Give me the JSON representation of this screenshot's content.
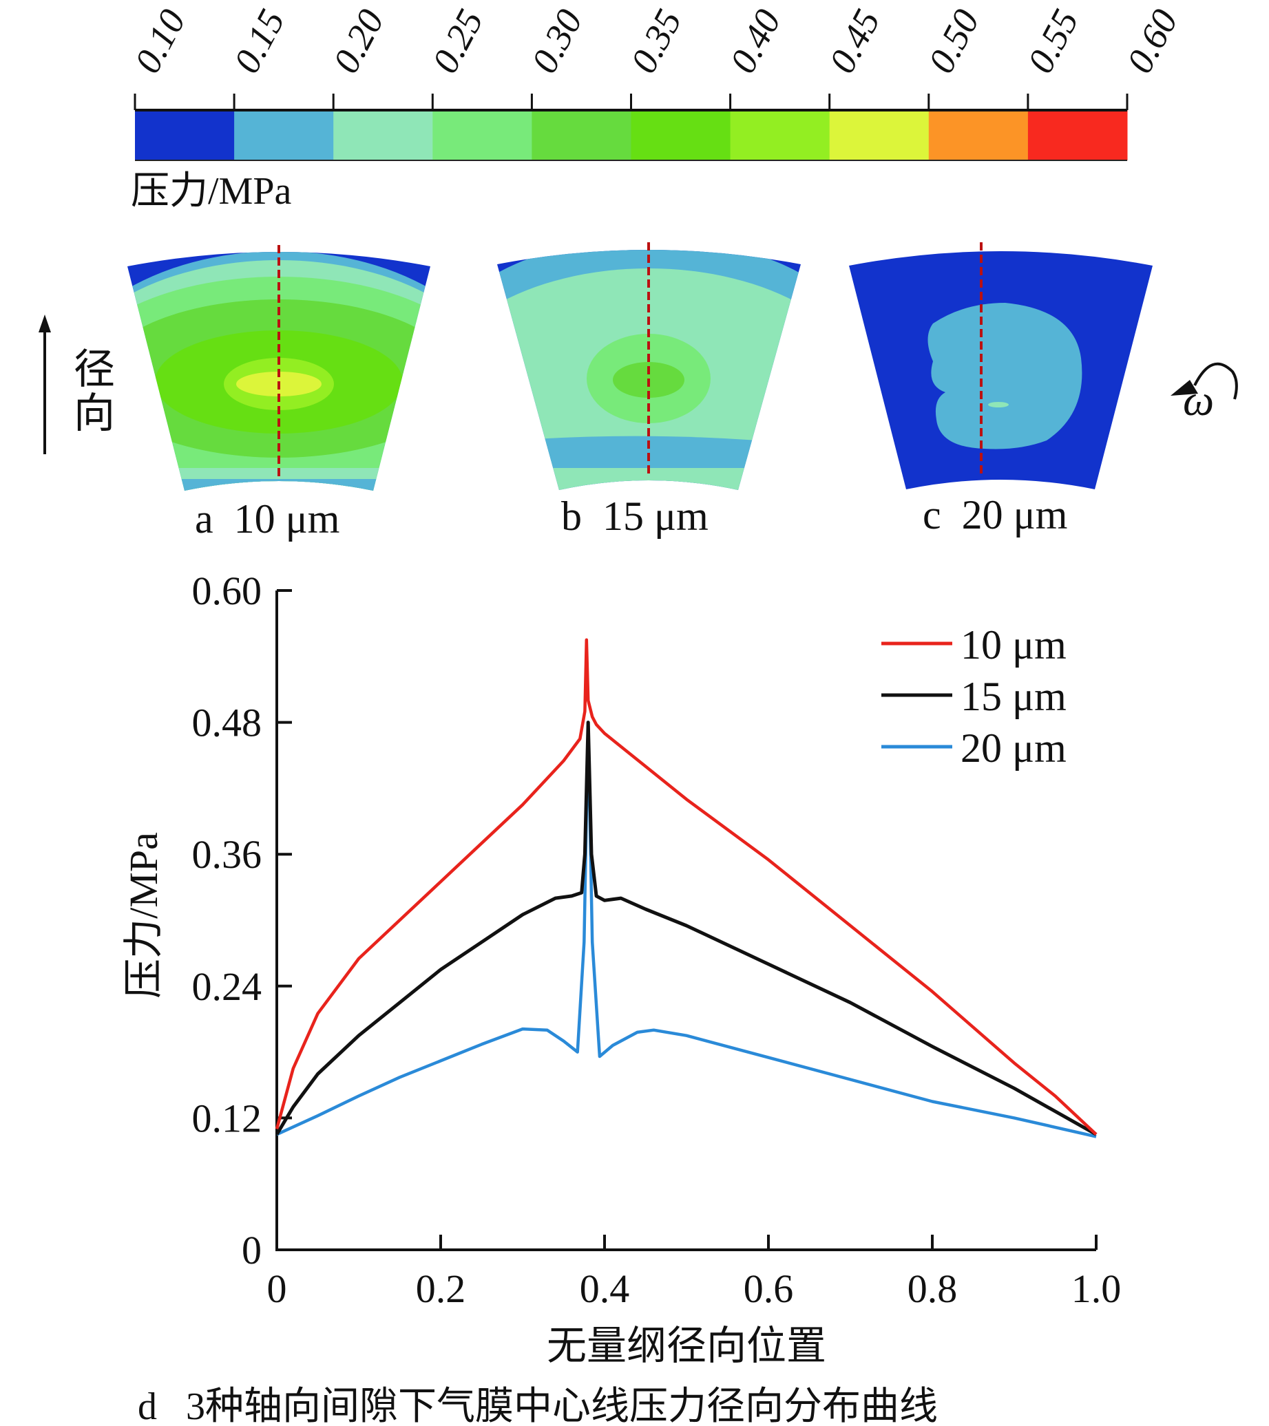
{
  "colorbar": {
    "ticks": [
      "0.10",
      "0.15",
      "0.20",
      "0.25",
      "0.30",
      "0.35",
      "0.40",
      "0.45",
      "0.50",
      "0.55",
      "0.60"
    ],
    "colors": [
      "#1233cc",
      "#55b4d6",
      "#8fe6b7",
      "#78ea7a",
      "#66db3e",
      "#66df13",
      "#93ee22",
      "#dcf53a",
      "#fc9426",
      "#f8291f"
    ],
    "label": "压力/MPa"
  },
  "contours": {
    "direction_label": "径向",
    "rotation_label": "ω",
    "panels": [
      {
        "id": "a",
        "caption": "a  10 μm"
      },
      {
        "id": "b",
        "caption": "b  15 μm"
      },
      {
        "id": "c",
        "caption": "c  20 μm"
      }
    ]
  },
  "chart_data": {
    "type": "line",
    "title": "d   3种轴向间隙下气膜中心线压力径向分布曲线",
    "xlabel": "无量纲径向位置",
    "ylabel": "压力/MPa",
    "xlim": [
      0,
      1.0
    ],
    "ylim": [
      0,
      0.6
    ],
    "xticks": [
      0,
      0.2,
      0.4,
      0.6,
      0.8,
      1.0
    ],
    "xtick_labels": [
      "0",
      "0.2",
      "0.4",
      "0.6",
      "0.8",
      "1.0"
    ],
    "yticks": [
      0,
      0.12,
      0.24,
      0.36,
      0.48,
      0.6
    ],
    "ytick_labels": [
      "0",
      "0.12",
      "0.24",
      "0.36",
      "0.48",
      "0.60"
    ],
    "grid": false,
    "legend_position": "top-right",
    "series": [
      {
        "name": "10 μm",
        "color": "#e8231c",
        "x": [
          0,
          0.02,
          0.05,
          0.1,
          0.15,
          0.2,
          0.25,
          0.3,
          0.35,
          0.37,
          0.376,
          0.378,
          0.38,
          0.385,
          0.39,
          0.4,
          0.45,
          0.5,
          0.6,
          0.7,
          0.8,
          0.9,
          0.95,
          1.0
        ],
        "y": [
          0.11,
          0.165,
          0.215,
          0.265,
          0.3,
          0.335,
          0.37,
          0.405,
          0.445,
          0.465,
          0.49,
          0.555,
          0.5,
          0.485,
          0.478,
          0.47,
          0.44,
          0.41,
          0.355,
          0.295,
          0.235,
          0.17,
          0.14,
          0.105
        ]
      },
      {
        "name": "15 μm",
        "color": "#111111",
        "x": [
          0,
          0.02,
          0.05,
          0.1,
          0.15,
          0.2,
          0.25,
          0.3,
          0.34,
          0.36,
          0.372,
          0.376,
          0.38,
          0.384,
          0.39,
          0.4,
          0.42,
          0.45,
          0.5,
          0.6,
          0.7,
          0.8,
          0.9,
          1.0
        ],
        "y": [
          0.105,
          0.13,
          0.16,
          0.195,
          0.225,
          0.255,
          0.28,
          0.305,
          0.32,
          0.322,
          0.325,
          0.36,
          0.48,
          0.36,
          0.322,
          0.318,
          0.32,
          0.31,
          0.295,
          0.26,
          0.225,
          0.185,
          0.147,
          0.105
        ]
      },
      {
        "name": "20 μm",
        "color": "#2a8ad8",
        "x": [
          0,
          0.05,
          0.1,
          0.15,
          0.2,
          0.25,
          0.3,
          0.33,
          0.35,
          0.367,
          0.375,
          0.38,
          0.385,
          0.394,
          0.41,
          0.44,
          0.46,
          0.5,
          0.6,
          0.7,
          0.8,
          0.9,
          1.0
        ],
        "y": [
          0.105,
          0.122,
          0.14,
          0.157,
          0.172,
          0.187,
          0.201,
          0.2,
          0.19,
          0.18,
          0.28,
          0.48,
          0.28,
          0.176,
          0.186,
          0.198,
          0.2,
          0.195,
          0.175,
          0.155,
          0.135,
          0.12,
          0.103
        ]
      }
    ]
  }
}
